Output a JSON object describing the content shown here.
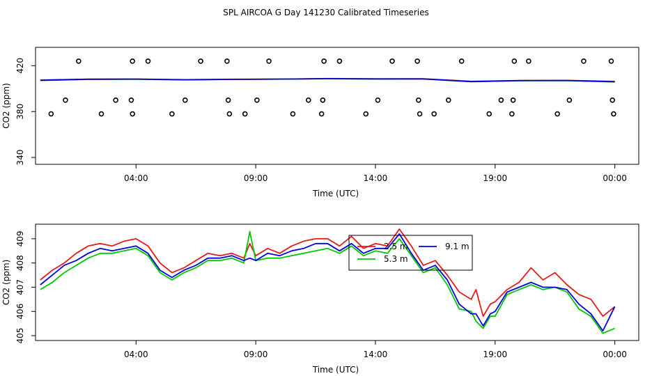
{
  "title": "SPL AIRCOA G  Day 141230  Calibrated Timeseries",
  "colors": {
    "red": "#e41a1c",
    "green": "#00c800",
    "blue": "#0000e0",
    "axis": "#000000"
  },
  "chart_data": [
    {
      "type": "scatter",
      "xlabel": "Time (UTC)",
      "ylabel": "CO2 (ppm)",
      "x_ticks": [
        {
          "x": 4,
          "label": "04:00"
        },
        {
          "x": 9,
          "label": "09:00"
        },
        {
          "x": 14,
          "label": "14:00"
        },
        {
          "x": 19,
          "label": "19:00"
        },
        {
          "x": 24,
          "label": "00:00"
        }
      ],
      "y_ticks": [
        {
          "y": 340,
          "label": "340"
        },
        {
          "y": 380,
          "label": "380"
        },
        {
          "y": 420,
          "label": "420"
        }
      ],
      "xlim": [
        -0.2,
        25
      ],
      "ylim": [
        334,
        436
      ],
      "series": [
        {
          "color_key": "red",
          "role": "line",
          "x": [
            0,
            2,
            4,
            6,
            8,
            10,
            12,
            14,
            16,
            18,
            20,
            22,
            24
          ],
          "y": [
            407.5,
            408.3,
            408.4,
            407.8,
            408.2,
            408.3,
            408.8,
            408.5,
            408.6,
            406.4,
            407.1,
            407.2,
            406.3
          ]
        },
        {
          "color_key": "green",
          "role": "line",
          "x": [
            0,
            2,
            4,
            6,
            8,
            10,
            12,
            14,
            16,
            18,
            20,
            22,
            24
          ],
          "y": [
            407.1,
            408.1,
            408.2,
            407.7,
            408.1,
            408.3,
            408.6,
            408.4,
            408.4,
            406.0,
            407.0,
            407.0,
            405.8
          ]
        },
        {
          "color_key": "blue",
          "role": "line",
          "x": [
            0,
            2,
            4,
            6,
            8,
            10,
            12,
            14,
            16,
            18,
            20,
            22,
            24
          ],
          "y": [
            407.3,
            408.2,
            408.3,
            407.7,
            408.1,
            408.3,
            408.7,
            408.5,
            408.5,
            406.1,
            407.0,
            407.1,
            406.0
          ]
        },
        {
          "color_key": "axis",
          "role": "points",
          "x": [
            0.45,
            1.05,
            1.6,
            2.55,
            3.15,
            3.8,
            3.85,
            3.85,
            4.5,
            5.5,
            6.05,
            6.7,
            7.8,
            7.85,
            7.9,
            8.55,
            9.05,
            9.55,
            10.55,
            11.2,
            11.75,
            11.8,
            11.85,
            12.5,
            13.6,
            14.1,
            14.7,
            15.75,
            15.8,
            15.85,
            16.45,
            17.05,
            17.6,
            18.75,
            19.25,
            19.7,
            19.75,
            19.8,
            20.4,
            21.6,
            22.1,
            22.7,
            23.85,
            23.9,
            23.95
          ],
          "y": [
            378,
            390,
            424,
            378,
            390,
            390,
            378,
            424,
            424,
            378,
            390,
            424,
            424,
            390,
            378,
            378,
            390,
            424,
            378,
            390,
            378,
            390,
            424,
            424,
            378,
            390,
            424,
            424,
            390,
            378,
            378,
            390,
            424,
            378,
            390,
            378,
            390,
            424,
            424,
            378,
            390,
            424,
            424,
            390,
            378
          ]
        }
      ]
    },
    {
      "type": "line",
      "xlabel": "Time (UTC)",
      "ylabel": "CO2 (ppm)",
      "x_ticks": [
        {
          "x": 4,
          "label": "04:00"
        },
        {
          "x": 9,
          "label": "09:00"
        },
        {
          "x": 14,
          "label": "14:00"
        },
        {
          "x": 19,
          "label": "19:00"
        },
        {
          "x": 24,
          "label": "00:00"
        }
      ],
      "y_ticks": [
        {
          "y": 405,
          "label": "405"
        },
        {
          "y": 406,
          "label": "406"
        },
        {
          "y": 407,
          "label": "407"
        },
        {
          "y": 408,
          "label": "408"
        },
        {
          "y": 409,
          "label": "409"
        }
      ],
      "xlim": [
        -0.2,
        25
      ],
      "ylim": [
        404.8,
        409.6
      ],
      "legend": {
        "position": "top-right",
        "entries": [
          {
            "label": "2.5 m",
            "color_key": "red"
          },
          {
            "label": "9.1 m",
            "color_key": "blue"
          },
          {
            "label": "5.3 m",
            "color_key": "green"
          }
        ]
      },
      "series": [
        {
          "name": "2.5 m",
          "color_key": "red",
          "x": [
            0,
            0.5,
            1,
            1.5,
            2,
            2.5,
            3,
            3.5,
            4,
            4.5,
            5,
            5.5,
            6,
            6.5,
            7,
            7.5,
            8,
            8.5,
            8.75,
            9,
            9.5,
            10,
            10.5,
            11,
            11.5,
            12,
            12.5,
            13,
            13.5,
            14,
            14.5,
            15,
            15.5,
            16,
            16.5,
            17,
            17.5,
            18,
            18.2,
            18.5,
            18.8,
            19,
            19.5,
            20,
            20.5,
            21,
            21.5,
            22,
            22.5,
            23,
            23.5,
            24
          ],
          "y": [
            407.3,
            407.7,
            408.0,
            408.4,
            408.7,
            408.8,
            408.7,
            408.9,
            409.0,
            408.7,
            408.0,
            407.6,
            407.8,
            408.1,
            408.4,
            408.3,
            408.4,
            408.2,
            408.8,
            408.3,
            408.6,
            408.4,
            408.7,
            408.9,
            409.0,
            409.0,
            408.7,
            409.1,
            408.6,
            408.8,
            408.7,
            409.4,
            408.7,
            407.9,
            408.1,
            407.5,
            406.8,
            406.5,
            406.9,
            405.8,
            406.3,
            406.4,
            406.9,
            407.2,
            407.8,
            407.3,
            407.6,
            407.1,
            406.7,
            406.5,
            405.8,
            406.2
          ]
        },
        {
          "name": "5.3 m",
          "color_key": "green",
          "x": [
            0,
            0.5,
            1,
            1.5,
            2,
            2.5,
            3,
            3.5,
            4,
            4.5,
            5,
            5.5,
            6,
            6.5,
            7,
            7.5,
            8,
            8.5,
            8.75,
            9,
            9.5,
            10,
            10.5,
            11,
            11.5,
            12,
            12.5,
            13,
            13.5,
            14,
            14.5,
            15,
            15.5,
            16,
            16.5,
            17,
            17.5,
            18,
            18.2,
            18.5,
            18.8,
            19,
            19.5,
            20,
            20.5,
            21,
            21.5,
            22,
            22.5,
            23,
            23.5,
            24
          ],
          "y": [
            406.9,
            407.2,
            407.6,
            407.9,
            408.2,
            408.4,
            408.4,
            408.5,
            408.6,
            408.3,
            407.6,
            407.3,
            407.6,
            407.8,
            408.1,
            408.1,
            408.2,
            408.0,
            409.3,
            408.1,
            408.2,
            408.2,
            408.3,
            408.4,
            408.5,
            408.6,
            408.4,
            408.7,
            408.3,
            408.5,
            408.4,
            409.0,
            408.3,
            407.6,
            407.8,
            407.1,
            406.1,
            406.0,
            405.6,
            405.3,
            405.8,
            405.8,
            406.7,
            406.9,
            407.1,
            406.9,
            407.0,
            406.8,
            406.1,
            405.8,
            405.1,
            405.3
          ]
        },
        {
          "name": "9.1 m",
          "color_key": "blue",
          "x": [
            0,
            0.5,
            1,
            1.5,
            2,
            2.5,
            3,
            3.5,
            4,
            4.5,
            5,
            5.5,
            6,
            6.5,
            7,
            7.5,
            8,
            8.5,
            8.75,
            9,
            9.5,
            10,
            10.5,
            11,
            11.5,
            12,
            12.5,
            13,
            13.5,
            14,
            14.5,
            15,
            15.5,
            16,
            16.5,
            17,
            17.5,
            18,
            18.2,
            18.5,
            18.8,
            19,
            19.5,
            20,
            20.5,
            21,
            21.5,
            22,
            22.5,
            23,
            23.5,
            24
          ],
          "y": [
            407.1,
            407.5,
            407.9,
            408.1,
            408.4,
            408.6,
            408.5,
            408.6,
            408.7,
            408.4,
            407.7,
            407.4,
            407.7,
            407.9,
            408.2,
            408.2,
            408.3,
            408.1,
            408.2,
            408.1,
            408.4,
            408.3,
            408.5,
            408.6,
            408.8,
            408.8,
            408.5,
            408.8,
            408.4,
            408.6,
            408.6,
            409.2,
            408.4,
            407.7,
            407.9,
            407.3,
            406.3,
            405.9,
            405.9,
            405.4,
            405.9,
            406.0,
            406.8,
            407.0,
            407.2,
            407.0,
            407.0,
            406.9,
            406.3,
            405.9,
            405.2,
            406.2
          ]
        }
      ]
    }
  ]
}
